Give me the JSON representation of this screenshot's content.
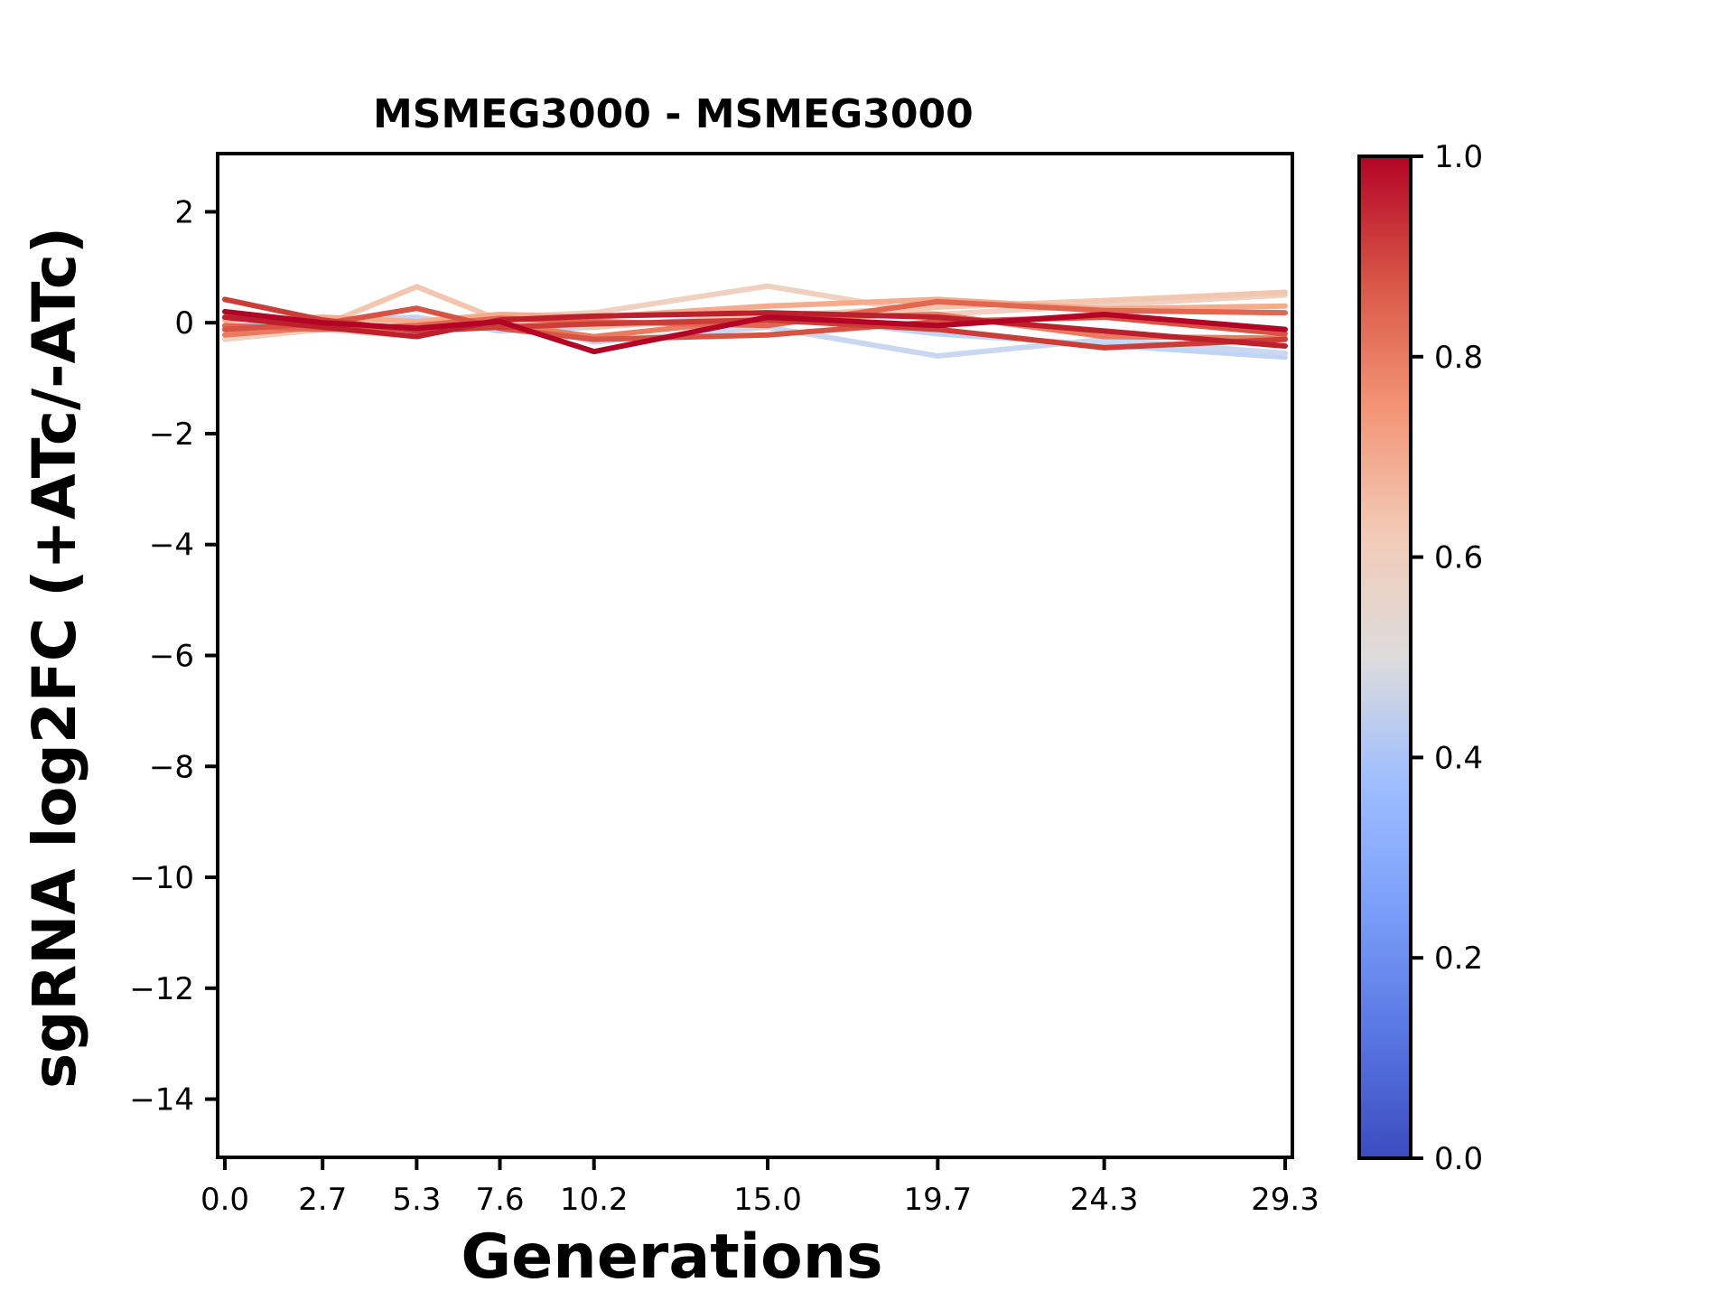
{
  "figure": {
    "background": "#ffffff",
    "text_color": "#000000"
  },
  "chart_data": {
    "type": "line",
    "title": "MSMEG3000 - MSMEG3000",
    "xlabel": "Generations",
    "ylabel": "sgRNA log2FC (+ATc/-ATc)",
    "grid": false,
    "legend": "none (colorbar encodes series value)",
    "x": [
      0.0,
      2.7,
      5.3,
      7.6,
      10.2,
      15.0,
      19.7,
      24.3,
      29.3
    ],
    "xtick_labels": [
      "0.0",
      "2.7",
      "5.3",
      "7.6",
      "10.2",
      "15.0",
      "19.7",
      "24.3",
      "29.3"
    ],
    "yticks": [
      2,
      0,
      -2,
      -4,
      -6,
      -8,
      -10,
      -12,
      -14
    ],
    "ytick_labels": [
      "2",
      "0",
      "−2",
      "−4",
      "−6",
      "−8",
      "−10",
      "−12",
      "−14"
    ],
    "xlim": [
      -0.2,
      29.5
    ],
    "ylim": [
      -15.05,
      3.05
    ],
    "series": [
      {
        "name": "line-1",
        "colormap_value": 0.42,
        "color": "#c0d4f5",
        "values": [
          -0.08,
          0.05,
          0.1,
          -0.15,
          -0.08,
          0.15,
          -0.2,
          -0.4,
          -0.62
        ]
      },
      {
        "name": "line-2",
        "colormap_value": 0.45,
        "color": "#c9d7f0",
        "values": [
          0.08,
          0.02,
          -0.18,
          0.12,
          -0.35,
          -0.08,
          -0.6,
          -0.3,
          -0.55
        ]
      },
      {
        "name": "line-3",
        "colormap_value": 0.58,
        "color": "#f0d0bf",
        "values": [
          -0.3,
          -0.12,
          -0.25,
          0.1,
          0.18,
          0.66,
          0.15,
          0.32,
          0.5
        ]
      },
      {
        "name": "line-4",
        "colormap_value": 0.62,
        "color": "#f3c7af",
        "values": [
          0.1,
          -0.05,
          0.65,
          0.05,
          -0.08,
          0.12,
          0.28,
          0.4,
          0.55
        ]
      },
      {
        "name": "line-5",
        "colormap_value": 0.7,
        "color": "#f6ab8c",
        "values": [
          0.05,
          0.1,
          0.02,
          0.15,
          0.1,
          0.3,
          0.42,
          0.25,
          0.3
        ]
      },
      {
        "name": "line-6",
        "colormap_value": 0.8,
        "color": "#ea7b60",
        "values": [
          -0.22,
          -0.08,
          -0.12,
          -0.02,
          -0.25,
          0.08,
          0.15,
          -0.25,
          -0.28
        ]
      },
      {
        "name": "line-7",
        "colormap_value": 0.84,
        "color": "#e16751",
        "values": [
          -0.05,
          -0.12,
          -0.05,
          0.08,
          0.02,
          -0.05,
          0.38,
          0.22,
          0.18
        ]
      },
      {
        "name": "line-8",
        "colormap_value": 0.88,
        "color": "#d75445",
        "values": [
          -0.12,
          -0.02,
          0.26,
          -0.1,
          -0.3,
          -0.22,
          0.02,
          0.1,
          -0.2
        ]
      },
      {
        "name": "line-9",
        "colormap_value": 0.92,
        "color": "#cb3e38",
        "values": [
          0.42,
          0.05,
          -0.15,
          -0.08,
          -0.02,
          0.05,
          -0.12,
          -0.45,
          -0.3
        ]
      },
      {
        "name": "line-10",
        "colormap_value": 0.97,
        "color": "#bd202d",
        "values": [
          0.1,
          -0.08,
          -0.25,
          0.05,
          0.12,
          0.18,
          0.1,
          -0.15,
          -0.42
        ]
      },
      {
        "name": "line-11",
        "colormap_value": 1.0,
        "color": "#b40426",
        "values": [
          0.2,
          0.0,
          -0.1,
          0.02,
          -0.52,
          0.1,
          -0.05,
          0.15,
          -0.12
        ]
      }
    ],
    "colorbar": {
      "colormap": "coolwarm",
      "range": [
        0.0,
        1.0
      ],
      "ticks": [
        0.0,
        0.2,
        0.4,
        0.6,
        0.8,
        1.0
      ],
      "tick_labels": [
        "0.0",
        "0.2",
        "0.4",
        "0.6",
        "0.8",
        "1.0"
      ],
      "stops": [
        {
          "t": 0.0,
          "color": "#3b4cc0"
        },
        {
          "t": 0.125,
          "color": "#5977e3"
        },
        {
          "t": 0.25,
          "color": "#7b9ff9"
        },
        {
          "t": 0.375,
          "color": "#9ebeff"
        },
        {
          "t": 0.5,
          "color": "#dddcdc"
        },
        {
          "t": 0.625,
          "color": "#f2cab5"
        },
        {
          "t": 0.75,
          "color": "#f39475"
        },
        {
          "t": 0.875,
          "color": "#d85646"
        },
        {
          "t": 1.0,
          "color": "#b40426"
        }
      ]
    }
  }
}
